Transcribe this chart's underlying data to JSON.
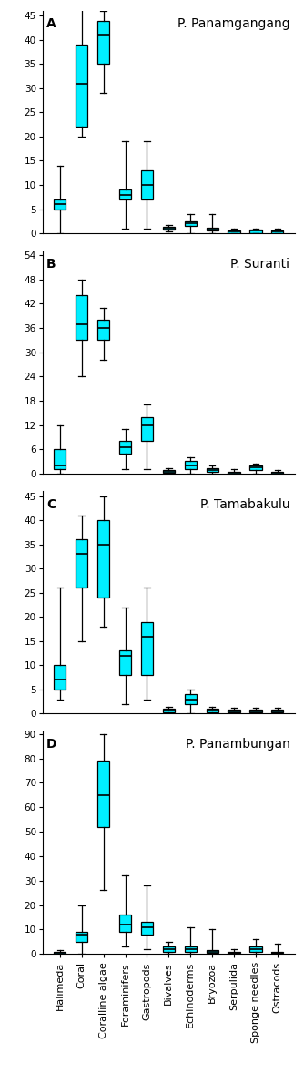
{
  "categories": [
    "Halimeda",
    "Coral",
    "Coralline algae",
    "Foraminifers",
    "Gastropods",
    "Bivalves",
    "Echinoderms",
    "Bryozoa",
    "Serpulida",
    "Sponge needles",
    "Ostracods"
  ],
  "panels": [
    {
      "label": "A",
      "title": "P. Panamgangang",
      "ylim": [
        0,
        46
      ],
      "yticks": [
        0,
        5,
        10,
        15,
        20,
        25,
        30,
        35,
        40,
        45
      ],
      "boxes": [
        {
          "whislo": 0,
          "q1": 5,
          "med": 6,
          "q3": 7,
          "whishi": 14
        },
        {
          "whislo": 20,
          "q1": 22,
          "med": 31,
          "q3": 39,
          "whishi": 48
        },
        {
          "whislo": 29,
          "q1": 35,
          "med": 41,
          "q3": 44,
          "whishi": 46
        },
        {
          "whislo": 1,
          "q1": 7,
          "med": 8,
          "q3": 9,
          "whishi": 19
        },
        {
          "whislo": 1,
          "q1": 7,
          "med": 10,
          "q3": 13,
          "whishi": 19
        },
        {
          "whislo": 0.3,
          "q1": 0.8,
          "med": 1,
          "q3": 1.3,
          "whishi": 1.8
        },
        {
          "whislo": 0,
          "q1": 1.5,
          "med": 2,
          "q3": 2.5,
          "whishi": 4
        },
        {
          "whislo": 0,
          "q1": 0.5,
          "med": 1,
          "q3": 1.2,
          "whishi": 4
        },
        {
          "whislo": 0,
          "q1": 0,
          "med": 0.3,
          "q3": 0.5,
          "whishi": 1
        },
        {
          "whislo": 0,
          "q1": 0,
          "med": 0.5,
          "q3": 0.8,
          "whishi": 1
        },
        {
          "whislo": 0,
          "q1": 0,
          "med": 0.3,
          "q3": 0.5,
          "whishi": 1
        }
      ]
    },
    {
      "label": "B",
      "title": "P. Suranti",
      "ylim": [
        0,
        55
      ],
      "yticks": [
        0,
        6,
        12,
        18,
        24,
        30,
        36,
        42,
        48,
        54
      ],
      "boxes": [
        {
          "whislo": 0,
          "q1": 1,
          "med": 2,
          "q3": 6,
          "whishi": 12
        },
        {
          "whislo": 24,
          "q1": 33,
          "med": 37,
          "q3": 44,
          "whishi": 48
        },
        {
          "whislo": 28,
          "q1": 33,
          "med": 36,
          "q3": 38,
          "whishi": 41
        },
        {
          "whislo": 1,
          "q1": 5,
          "med": 6.5,
          "q3": 8,
          "whishi": 11
        },
        {
          "whislo": 1,
          "q1": 8,
          "med": 12,
          "q3": 14,
          "whishi": 17
        },
        {
          "whislo": 0,
          "q1": 0.2,
          "med": 0.4,
          "q3": 0.8,
          "whishi": 1.2
        },
        {
          "whislo": 0,
          "q1": 1,
          "med": 2,
          "q3": 3,
          "whishi": 4
        },
        {
          "whislo": 0,
          "q1": 0.3,
          "med": 0.8,
          "q3": 1.2,
          "whishi": 2
        },
        {
          "whislo": 0,
          "q1": 0,
          "med": 0.2,
          "q3": 0.5,
          "whishi": 1
        },
        {
          "whislo": 0,
          "q1": 0.8,
          "med": 1.5,
          "q3": 2,
          "whishi": 2.5
        },
        {
          "whislo": 0,
          "q1": 0,
          "med": 0.2,
          "q3": 0.5,
          "whishi": 0.8
        }
      ]
    },
    {
      "label": "C",
      "title": "P. Tamabakulu",
      "ylim": [
        0,
        46
      ],
      "yticks": [
        0,
        5,
        10,
        15,
        20,
        25,
        30,
        35,
        40,
        45
      ],
      "boxes": [
        {
          "whislo": 3,
          "q1": 5,
          "med": 7,
          "q3": 10,
          "whishi": 26
        },
        {
          "whislo": 15,
          "q1": 26,
          "med": 33,
          "q3": 36,
          "whishi": 41
        },
        {
          "whislo": 18,
          "q1": 24,
          "med": 35,
          "q3": 40,
          "whishi": 45
        },
        {
          "whislo": 2,
          "q1": 8,
          "med": 12,
          "q3": 13,
          "whishi": 22
        },
        {
          "whislo": 3,
          "q1": 8,
          "med": 16,
          "q3": 19,
          "whishi": 26
        },
        {
          "whislo": 0,
          "q1": 0.3,
          "med": 0.7,
          "q3": 1,
          "whishi": 1.5
        },
        {
          "whislo": 0,
          "q1": 2,
          "med": 3,
          "q3": 4,
          "whishi": 5
        },
        {
          "whislo": 0,
          "q1": 0.3,
          "med": 0.7,
          "q3": 1,
          "whishi": 1.5
        },
        {
          "whislo": 0,
          "q1": 0.2,
          "med": 0.4,
          "q3": 0.8,
          "whishi": 1.2
        },
        {
          "whislo": 0,
          "q1": 0.2,
          "med": 0.4,
          "q3": 0.8,
          "whishi": 1.2
        },
        {
          "whislo": 0,
          "q1": 0.2,
          "med": 0.4,
          "q3": 0.8,
          "whishi": 1.2
        }
      ]
    },
    {
      "label": "D",
      "title": "P. Panambungan",
      "ylim": [
        0,
        91
      ],
      "yticks": [
        0,
        10,
        20,
        30,
        40,
        50,
        60,
        70,
        80,
        90
      ],
      "boxes": [
        {
          "whislo": 0,
          "q1": 0.2,
          "med": 0.5,
          "q3": 1,
          "whishi": 1.5
        },
        {
          "whislo": 0,
          "q1": 5,
          "med": 8,
          "q3": 9,
          "whishi": 20
        },
        {
          "whislo": 26,
          "q1": 52,
          "med": 65,
          "q3": 79,
          "whishi": 90
        },
        {
          "whislo": 3,
          "q1": 9,
          "med": 12,
          "q3": 16,
          "whishi": 32
        },
        {
          "whislo": 2,
          "q1": 8,
          "med": 11,
          "q3": 13,
          "whishi": 28
        },
        {
          "whislo": 0,
          "q1": 1,
          "med": 2,
          "q3": 3,
          "whishi": 5
        },
        {
          "whislo": 0,
          "q1": 1,
          "med": 2,
          "q3": 3,
          "whishi": 11
        },
        {
          "whislo": 0,
          "q1": 0.5,
          "med": 1,
          "q3": 1.5,
          "whishi": 10
        },
        {
          "whislo": 0,
          "q1": 0.3,
          "med": 0.5,
          "q3": 1,
          "whishi": 2
        },
        {
          "whislo": 0,
          "q1": 1,
          "med": 2,
          "q3": 3,
          "whishi": 6
        },
        {
          "whislo": 0,
          "q1": 0.3,
          "med": 0.5,
          "q3": 1,
          "whishi": 4
        }
      ]
    }
  ],
  "box_color": "#00EEFF",
  "box_edge_color": "#000000",
  "median_color": "#000000",
  "whisker_color": "#000000",
  "cap_color": "#000000",
  "label_fontsize": 8,
  "title_fontsize": 10,
  "tick_fontsize": 7.5,
  "panel_label_fontsize": 10
}
